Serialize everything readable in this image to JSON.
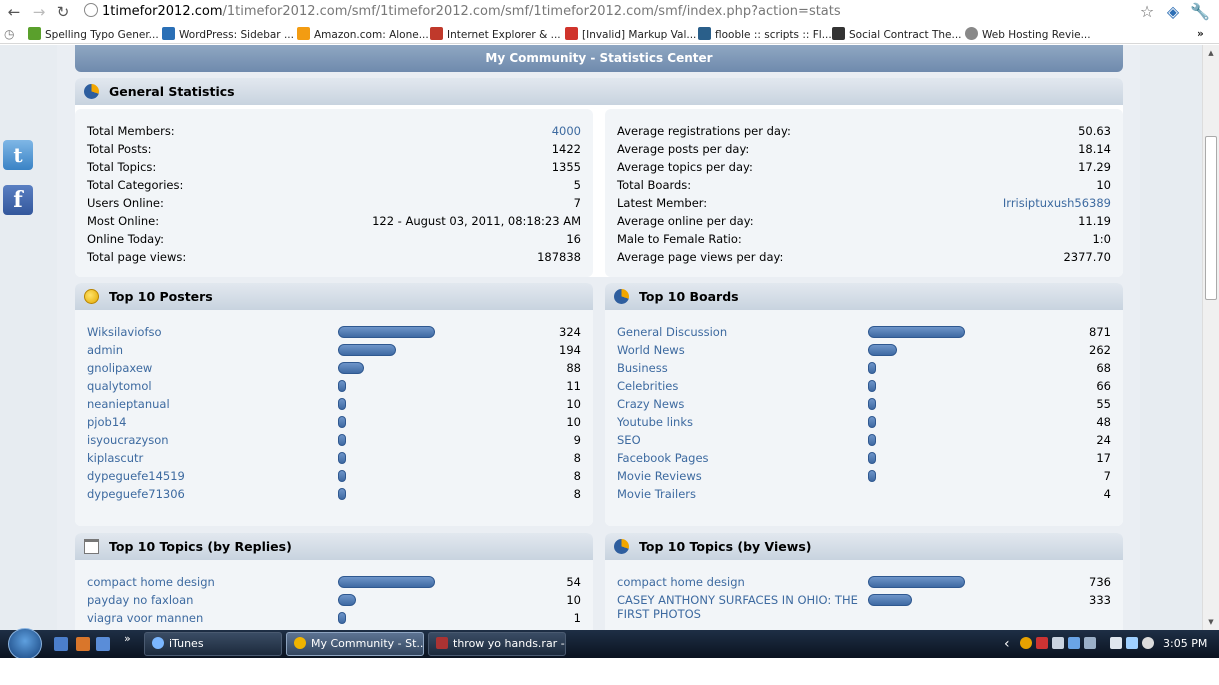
{
  "browser": {
    "url_host": "1timefor2012.com",
    "url_path": "/1timefor2012.com/smf/1timefor2012.com/smf/1timefor2012.com/smf/index.php?action=stats",
    "bookmarks": [
      {
        "label": "Spelling Typo Gener...",
        "color": "#5aa02c"
      },
      {
        "label": "WordPress: Sidebar ...",
        "color": "#2a6fb6"
      },
      {
        "label": "Amazon.com: Alone...",
        "color": "#f39c12"
      },
      {
        "label": "Internet Explorer & ...",
        "color": "#c0392b"
      },
      {
        "label": "[Invalid] Markup Val...",
        "color": "#d0342c"
      },
      {
        "label": "flooble :: scripts :: Fl...",
        "color": "#2a5f8a"
      },
      {
        "label": "Social Contract The...",
        "color": "#333333"
      },
      {
        "label": "Web Hosting Revie...",
        "color": "#888888"
      }
    ],
    "more_bookmarks": "»"
  },
  "page": {
    "category_title": "My Community - Statistics Center",
    "general": {
      "title": "General Statistics",
      "left": [
        {
          "label": "Total Members:",
          "value": "4000",
          "link": true
        },
        {
          "label": "Total Posts:",
          "value": "1422"
        },
        {
          "label": "Total Topics:",
          "value": "1355"
        },
        {
          "label": "Total Categories:",
          "value": "5"
        },
        {
          "label": "Users Online:",
          "value": "7"
        },
        {
          "label": "Most Online:",
          "value": "122 - August 03, 2011, 08:18:23 AM"
        },
        {
          "label": "Online Today:",
          "value": "16"
        },
        {
          "label": "Total page views:",
          "value": "187838"
        }
      ],
      "right": [
        {
          "label": "Average registrations per day:",
          "value": "50.63"
        },
        {
          "label": "Average posts per day:",
          "value": "18.14"
        },
        {
          "label": "Average topics per day:",
          "value": "17.29"
        },
        {
          "label": "Total Boards:",
          "value": "10"
        },
        {
          "label": "Latest Member:",
          "value": "Irrisiptuxush56389",
          "link": true
        },
        {
          "label": "Average online per day:",
          "value": "11.19"
        },
        {
          "label": "Male to Female Ratio:",
          "value": "1:0"
        },
        {
          "label": "Average page views per day:",
          "value": "2377.70"
        }
      ]
    },
    "top_posters": {
      "title": "Top 10 Posters",
      "items": [
        {
          "name": "Wiksilaviofso",
          "value": "324",
          "pct": 100
        },
        {
          "name": "admin",
          "value": "194",
          "pct": 60
        },
        {
          "name": "gnolipaxew",
          "value": "88",
          "pct": 27
        },
        {
          "name": "qualytomol",
          "value": "11",
          "pct": 3
        },
        {
          "name": "neanieptanual",
          "value": "10",
          "pct": 3
        },
        {
          "name": "pjob14",
          "value": "10",
          "pct": 3
        },
        {
          "name": "isyoucrazyson",
          "value": "9",
          "pct": 3
        },
        {
          "name": "kiplascutr",
          "value": "8",
          "pct": 2
        },
        {
          "name": "dypeguefe14519",
          "value": "8",
          "pct": 2
        },
        {
          "name": "dypeguefe71306",
          "value": "8",
          "pct": 2
        }
      ]
    },
    "top_boards": {
      "title": "Top 10 Boards",
      "items": [
        {
          "name": "General Discussion",
          "value": "871",
          "pct": 100
        },
        {
          "name": "World News",
          "value": "262",
          "pct": 30
        },
        {
          "name": "Business",
          "value": "68",
          "pct": 8
        },
        {
          "name": "Celebrities",
          "value": "66",
          "pct": 8
        },
        {
          "name": "Crazy News",
          "value": "55",
          "pct": 6
        },
        {
          "name": "Youtube links",
          "value": "48",
          "pct": 6
        },
        {
          "name": "SEO",
          "value": "24",
          "pct": 3
        },
        {
          "name": "Facebook Pages",
          "value": "17",
          "pct": 2
        },
        {
          "name": "Movie Reviews",
          "value": "7",
          "pct": 1
        },
        {
          "name": "Movie Trailers",
          "value": "4",
          "pct": 0
        }
      ]
    },
    "top_replies": {
      "title": "Top 10 Topics (by Replies)",
      "items": [
        {
          "name": "compact home design",
          "value": "54",
          "pct": 100
        },
        {
          "name": "payday no faxloan",
          "value": "10",
          "pct": 19
        },
        {
          "name": "viagra voor mannen",
          "value": "1",
          "pct": 2
        }
      ]
    },
    "top_views": {
      "title": "Top 10 Topics (by Views)",
      "items": [
        {
          "name": "compact home design",
          "value": "736",
          "pct": 100
        },
        {
          "name": "CASEY ANTHONY SURFACES IN OHIO: THE",
          "name2": "FIRST PHOTOS",
          "value": "333",
          "pct": 45
        }
      ]
    }
  },
  "taskbar": {
    "quicklaunch_more": "»",
    "tasks": [
      {
        "label": "iTunes",
        "color": "#7bb7ff"
      },
      {
        "label": "My Community - St...",
        "color": "#f0b400",
        "active": true
      },
      {
        "label": "throw yo hands.rar -...",
        "color": "#a33"
      }
    ],
    "tray_chevron": "‹",
    "clock": "3:05 PM"
  }
}
